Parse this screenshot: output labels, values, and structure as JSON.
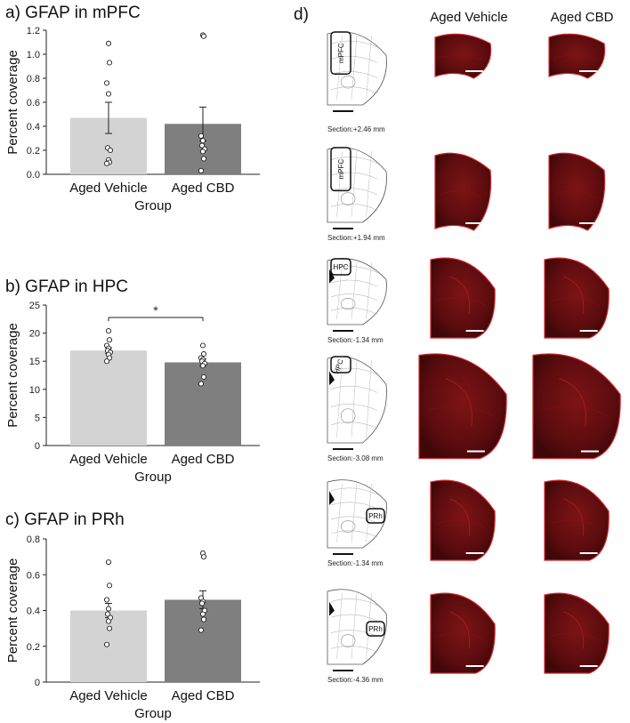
{
  "chart_data": [
    {
      "type": "bar",
      "title": "a) GFAP in mPFC",
      "xlabel": "Group",
      "ylabel": "Percent coverage",
      "ylim": [
        0,
        1.2
      ],
      "yticks": [
        "0.0",
        "0.2",
        "0.4",
        "0.6",
        "0.8",
        "1.0",
        "1.2"
      ],
      "categories": [
        "Aged Vehicle",
        "Aged CBD"
      ],
      "values": [
        0.47,
        0.42
      ],
      "errors": [
        0.13,
        0.14
      ],
      "bar_colors": [
        "#d3d3d3",
        "#7f7f7f"
      ],
      "points": [
        [
          1.09,
          0.93,
          0.76,
          0.67,
          0.22,
          0.2,
          0.12,
          0.1,
          0.09
        ],
        [
          1.16,
          1.15,
          0.32,
          0.28,
          0.24,
          0.21,
          0.19,
          0.13,
          0.03
        ]
      ]
    },
    {
      "type": "bar",
      "title": "b) GFAP in HPC",
      "xlabel": "Group",
      "ylabel": "Percent coverage",
      "ylim": [
        0,
        25
      ],
      "yticks": [
        "0",
        "5",
        "10",
        "15",
        "20",
        "25"
      ],
      "categories": [
        "Aged Vehicle",
        "Aged CBD"
      ],
      "values": [
        16.9,
        14.8
      ],
      "errors": [
        0.5,
        0.6
      ],
      "bar_colors": [
        "#d3d3d3",
        "#7f7f7f"
      ],
      "points": [
        [
          20.4,
          18.8,
          17.8,
          17.3,
          16.9,
          16.6,
          16.2,
          15.6,
          15.0
        ],
        [
          17.8,
          16.3,
          15.6,
          15.3,
          15.0,
          14.6,
          14.2,
          12.2,
          11.0
        ]
      ],
      "annotation": "*"
    },
    {
      "type": "bar",
      "title": "c) GFAP in PRh",
      "xlabel": "Group",
      "ylabel": "Percent coverage",
      "ylim": [
        0,
        0.8
      ],
      "yticks": [
        "0",
        "0.2",
        "0.4",
        "0.6",
        "0.8"
      ],
      "categories": [
        "Aged Vehicle",
        "Aged CBD"
      ],
      "values": [
        0.4,
        0.46
      ],
      "errors": [
        0.04,
        0.05
      ],
      "bar_colors": [
        "#d3d3d3",
        "#7f7f7f"
      ],
      "points": [
        [
          0.67,
          0.54,
          0.46,
          0.41,
          0.38,
          0.36,
          0.34,
          0.3,
          0.21
        ],
        [
          0.72,
          0.7,
          0.47,
          0.45,
          0.44,
          0.4,
          0.38,
          0.35,
          0.29
        ]
      ]
    }
  ],
  "panel_d": {
    "label": "d)",
    "col_headers": [
      "Aged Vehicle",
      "Aged CBD"
    ],
    "sections": [
      {
        "caption": "Section:+2.46 mm",
        "region": "mPFC"
      },
      {
        "caption": "Section:+1.94 mm",
        "region": "mPFC"
      },
      {
        "caption": "Section:-1.34 mm",
        "region": "HPC"
      },
      {
        "caption": "Section:-3.08 mm",
        "region": "HPC"
      },
      {
        "caption": "Section:-1.34 mm",
        "region": "PRh"
      },
      {
        "caption": "Section:-4.36 mm",
        "region": "PRh"
      }
    ],
    "tissue_color": "#6a0f10",
    "tissue_edge": "#d0262a"
  }
}
